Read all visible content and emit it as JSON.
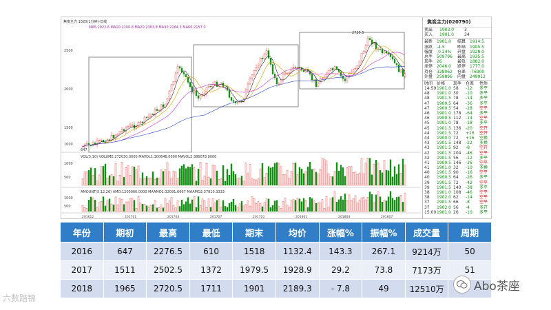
{
  "chart_header": {
    "main_indicator": "焦炭主力 1020(1分钟)-日线",
    "ma_line": "MA5:2022.6  MA10:2100.8  MA20:2303.8  MA30:2164.5  MA60:2157.0",
    "volume_line": "VOL(5,10) VOLUME:272030.0000  MAVOL1:300648.0000  MAVOL2:386078.0000",
    "oi_line": "AMOUNT(5,12,26)  AMO:1200000.0000  MAAMO1:32091.6667  MAAMO2:37810.3333"
  },
  "price_axis": [
    "2500",
    "2000",
    "1500",
    "1000"
  ],
  "volume_axis": [
    "1000",
    "500"
  ],
  "oi_axis": [
    "1000",
    "500"
  ],
  "date_axis": [
    "201612",
    "201701",
    "201704",
    "201707",
    "201710",
    "201801",
    "201804",
    "201807"
  ],
  "peak_label": "2720.5",
  "low_label": "647",
  "quote_panel": {
    "title": "焦炭主力(020790)",
    "sell": {
      "label": "卖出",
      "price": "1903.0",
      "qty": "3"
    },
    "buy": {
      "label": "买入",
      "price": "1901.0",
      "qty": "34"
    },
    "fields": [
      {
        "k": "最新",
        "v": "1901.0",
        "k2": "结算",
        "v2": "1914.5"
      },
      {
        "k": "涨跌",
        "v": "-4.5",
        "k2": "昨结",
        "v2": "1905.5"
      },
      {
        "k": "幅度",
        "v": "-0.24%",
        "k2": "开盘",
        "v2": "1928.0"
      },
      {
        "k": "总手",
        "v": "509796",
        "k2": "最高",
        "v2": "1935.5"
      },
      {
        "k": "现手",
        "v": "26",
        "k2": "最低",
        "v2": "1882.0"
      },
      {
        "k": "涨停",
        "v": "2046.0",
        "k2": "跌停",
        "v2": "1777.0"
      },
      {
        "k": "持仓",
        "v": "328062",
        "k2": "仓差",
        "v2": "-76900"
      },
      {
        "k": "外盘",
        "v": "259896",
        "k2": "内盘",
        "v2": "249912"
      }
    ],
    "ticks_header": {
      "t": "时间",
      "p": "价格",
      "q": "现手",
      "o": "仓差",
      "n": "性质"
    },
    "ticks": [
      {
        "t": "14:59",
        "p": "1901.0",
        "q": "58",
        "o": "-12",
        "n": "多平",
        "c": "green"
      },
      {
        "t": "48",
        "p": "1901.0",
        "q": "30",
        "o": "-10",
        "n": "多平",
        "c": "green"
      },
      {
        "t": "48",
        "p": "1901.5",
        "q": "78",
        "o": "-14",
        "n": "多平",
        "c": "green"
      },
      {
        "t": "47",
        "p": "1900.5",
        "q": "64",
        "o": "-36",
        "n": "多平",
        "c": "green"
      },
      {
        "t": "47",
        "p": "1900.5",
        "q": "54",
        "o": "-28",
        "n": "空平",
        "c": "red"
      },
      {
        "t": "46",
        "p": "1901.0",
        "q": "178",
        "o": "-64",
        "n": "多平",
        "c": "green"
      },
      {
        "t": "46",
        "p": "1900.5",
        "q": "112",
        "o": "-14",
        "n": "空平",
        "c": "red"
      },
      {
        "t": "45",
        "p": "1901.0",
        "q": "78",
        "o": "-18",
        "n": "多平",
        "c": "green"
      },
      {
        "t": "45",
        "p": "1901.5",
        "q": "136",
        "o": "-20",
        "n": "空开",
        "c": "red"
      },
      {
        "t": "44",
        "p": "1901.5",
        "q": "72",
        "o": "+16",
        "n": "空开",
        "c": "red"
      },
      {
        "t": "44",
        "p": "1900.0",
        "q": "72",
        "o": "+16",
        "n": "空换",
        "c": "green"
      },
      {
        "t": "43",
        "p": "1901.5",
        "q": "148",
        "o": "-22",
        "n": "多换",
        "c": "green"
      },
      {
        "t": "43",
        "p": "1901.5",
        "q": "92",
        "o": "-8",
        "n": "空开",
        "c": "red"
      },
      {
        "t": "42",
        "p": "1901.5",
        "q": "204",
        "o": "-46",
        "n": "空平",
        "c": "red"
      },
      {
        "t": "42",
        "p": "1901.5",
        "q": "56",
        "o": "-12",
        "n": "多平",
        "c": "green"
      },
      {
        "t": "41",
        "p": "1900.5",
        "q": "146",
        "o": "-26",
        "n": "空平",
        "c": "red"
      },
      {
        "t": "41",
        "p": "1901.0",
        "q": "32",
        "o": "-10",
        "n": "多换",
        "c": "green"
      },
      {
        "t": "40",
        "p": "1901.5",
        "q": "90",
        "o": "-16",
        "n": "空平",
        "c": "red"
      },
      {
        "t": "40",
        "p": "1900.5",
        "q": "64",
        "o": "-26",
        "n": "多平",
        "c": "green"
      },
      {
        "t": "39",
        "p": "1901.5",
        "q": "72",
        "o": "-42",
        "n": "空平",
        "c": "red"
      },
      {
        "t": "39",
        "p": "1901.5",
        "q": "140",
        "o": "-38",
        "n": "多平",
        "c": "green"
      },
      {
        "t": "38",
        "p": "1901.0",
        "q": "108",
        "o": "-46",
        "n": "空平",
        "c": "red"
      },
      {
        "t": "38",
        "p": "1902.0",
        "q": "62",
        "o": "-14",
        "n": "空平",
        "c": "red"
      },
      {
        "t": "37",
        "p": "1901.5",
        "q": "66",
        "o": "-8",
        "n": "空平",
        "c": "red"
      },
      {
        "t": "37",
        "p": "1902.0",
        "q": "56",
        "o": "-4",
        "n": "多开",
        "c": "green"
      },
      {
        "t": "15:00",
        "p": "1901.0",
        "q": "26",
        "o": "-10",
        "n": "多平",
        "c": "green"
      }
    ]
  },
  "slider_badge": "41",
  "table": {
    "headers": [
      "年份",
      "期初",
      "最高",
      "最低",
      "期末",
      "均价",
      "涨幅%",
      "振幅%",
      "成交量",
      "周期"
    ],
    "rows": [
      [
        "2016",
        "647",
        "2276.5",
        "610",
        "1518",
        "1132.4",
        "143.3",
        "267.1",
        "9214万",
        "50"
      ],
      [
        "2017",
        "1511",
        "2502.5",
        "1372",
        "1979.5",
        "1928.9",
        "29.2",
        "73.8",
        "7173万",
        "51"
      ],
      [
        "2018",
        "1965",
        "2720.5",
        "1711",
        "1901",
        "2189.3",
        "- 7.8",
        "49",
        "12510万",
        ""
      ]
    ]
  },
  "watermarks": {
    "left": "六数踏锦",
    "right": "Abo茶座"
  },
  "colors": {
    "up": "#e03030",
    "down": "#159015",
    "ma5": "#222222",
    "ma10": "#d9a000",
    "ma20": "#cc33cc",
    "ma60": "#2244cc",
    "header": "#2f7ec7"
  }
}
